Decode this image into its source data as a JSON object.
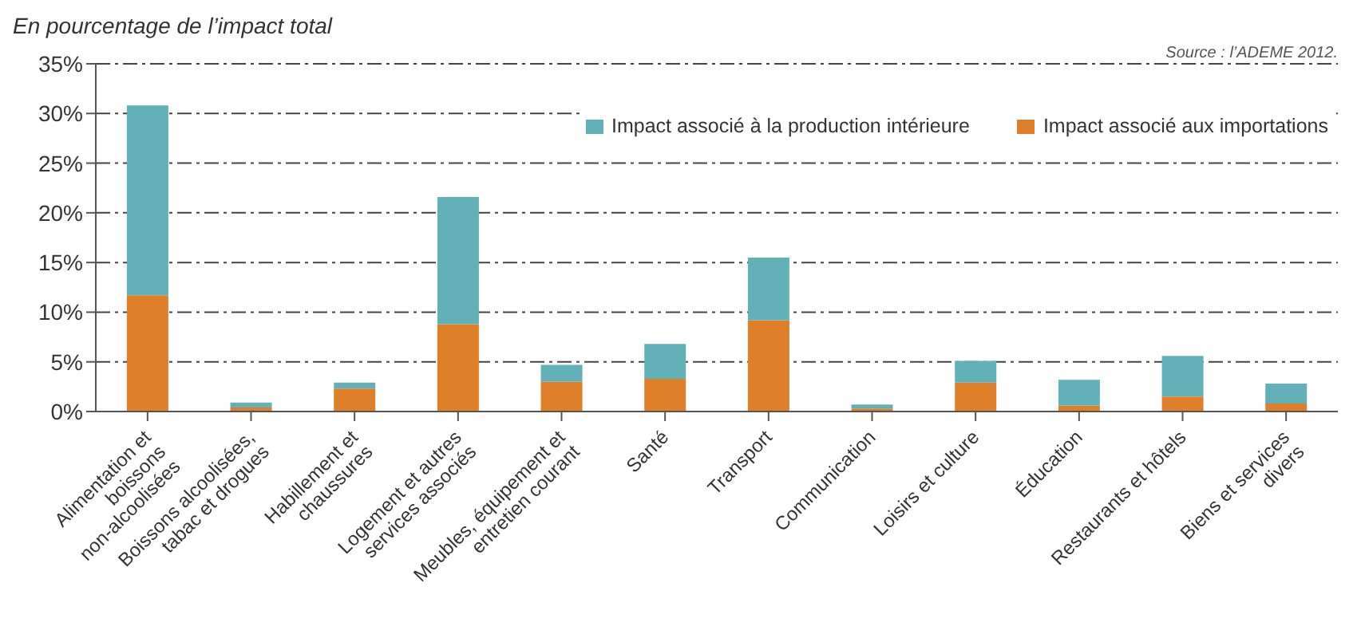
{
  "chart_data": {
    "type": "bar",
    "title": "En pourcentage de l’impact total",
    "annotations": [
      "Source : l’ADEME 2012."
    ],
    "categories": [
      "Alimentation et boissons non-alcoolisées",
      "Boissons alcoolisées, tabac et drogues",
      "Habillement et chaussures",
      "Logement et autres services associés",
      "Meubles, équipement et entretien courant",
      "Santé",
      "Transport",
      "Communication",
      "Loisirs et culture",
      "Éducation",
      "Restaurants et hôtels",
      "Biens et services divers"
    ],
    "series": [
      {
        "name": "Impact associé aux importations",
        "color": "#e07f2a",
        "values": [
          11.7,
          0.4,
          2.3,
          8.8,
          3.0,
          3.3,
          9.2,
          0.3,
          2.9,
          0.6,
          1.5,
          0.8
        ]
      },
      {
        "name": "Impact associé à la production intérieure",
        "color": "#62b1b8",
        "values": [
          19.1,
          0.5,
          0.6,
          12.8,
          1.7,
          3.5,
          6.3,
          0.4,
          2.2,
          2.6,
          4.1,
          2.0
        ]
      }
    ],
    "stacked": true,
    "ylim": [
      0,
      35
    ],
    "yticks": [
      {
        "value": 0,
        "label": "0%"
      },
      {
        "value": 5,
        "label": "5%"
      },
      {
        "value": 10,
        "label": "10%"
      },
      {
        "value": 15,
        "label": "15%"
      },
      {
        "value": 20,
        "label": "20%"
      },
      {
        "value": 25,
        "label": "25%"
      },
      {
        "value": 30,
        "label": "30%"
      },
      {
        "value": 35,
        "label": "35%"
      }
    ],
    "grid": "y",
    "legend": "top right"
  }
}
